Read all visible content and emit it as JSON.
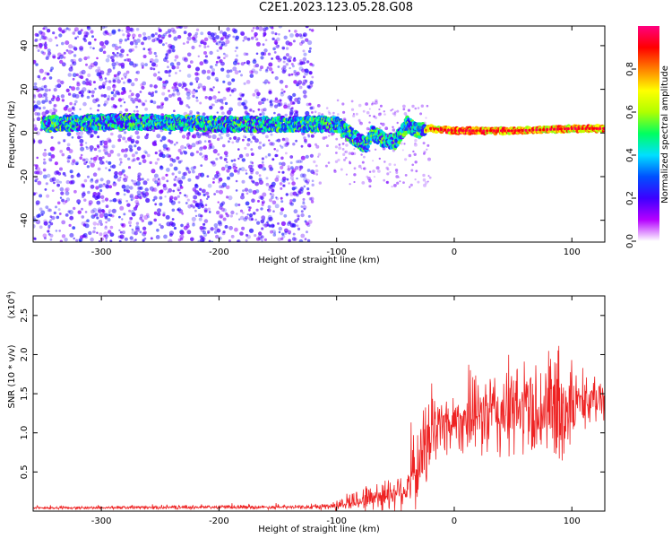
{
  "title": "C2E1.2023.123.05.28.G08",
  "chart_data": [
    {
      "type": "heatmap",
      "xlabel": "Height of straight line (km)",
      "ylabel": "Frequency (Hz)",
      "xlim": [
        -358,
        128
      ],
      "ylim": [
        -50,
        49
      ],
      "xticks": [
        -300,
        -200,
        -100,
        0,
        100
      ],
      "yticks": [
        -40,
        -20,
        0,
        20,
        40
      ],
      "colorbar": {
        "label": "Normalized spectral amplitude",
        "range": [
          0.0,
          1.0
        ],
        "ticks": [
          "0.0",
          "0.2",
          "0.4",
          "0.6",
          "0.8"
        ],
        "colors": [
          "#ffffff",
          "#b400ff",
          "#3c00ff",
          "#0050ff",
          "#00e0ff",
          "#00ff60",
          "#b0ff00",
          "#ffff00",
          "#ff8000",
          "#ff0000",
          "#ff0080"
        ]
      },
      "ridge": {
        "x": [
          -350,
          -300,
          -250,
          -200,
          -150,
          -120,
          -100,
          -90,
          -80,
          -75,
          -70,
          -60,
          -50,
          -40,
          -30,
          -20,
          0,
          50,
          100,
          128
        ],
        "frequency": [
          4,
          5,
          5,
          4,
          4,
          4,
          4,
          0,
          -4,
          -6,
          0,
          -3,
          -4,
          4,
          1,
          2,
          1,
          1,
          2,
          2
        ]
      }
    },
    {
      "type": "line",
      "xlabel": "Height of straight line (km)",
      "ylabel": "SNR (10 * v/v)",
      "yscale_label": "(x10",
      "yscale_exp": "4",
      "yscale_suffix": ")",
      "xlim": [
        -358,
        128
      ],
      "ylim": [
        0,
        2.75
      ],
      "xticks": [
        -300,
        -200,
        -100,
        0,
        100
      ],
      "yticks": [
        0.5,
        1.0,
        1.5,
        2.0,
        2.5
      ],
      "color": "#ee2222",
      "envelope": {
        "x": [
          -358,
          -200,
          -120,
          -100,
          -80,
          -60,
          -40,
          -30,
          -20,
          -10,
          0,
          20,
          40,
          60,
          80,
          90,
          100,
          110,
          128
        ],
        "baseline": [
          0.04,
          0.05,
          0.05,
          0.07,
          0.15,
          0.2,
          0.3,
          0.6,
          1.0,
          1.1,
          1.15,
          1.2,
          1.25,
          1.3,
          1.3,
          1.3,
          1.35,
          1.4,
          1.45
        ],
        "amplitude": [
          0.02,
          0.03,
          0.03,
          0.08,
          0.2,
          0.25,
          0.35,
          0.7,
          0.7,
          0.5,
          0.45,
          0.6,
          0.8,
          0.7,
          0.9,
          1.1,
          0.6,
          0.4,
          0.35
        ]
      }
    }
  ]
}
